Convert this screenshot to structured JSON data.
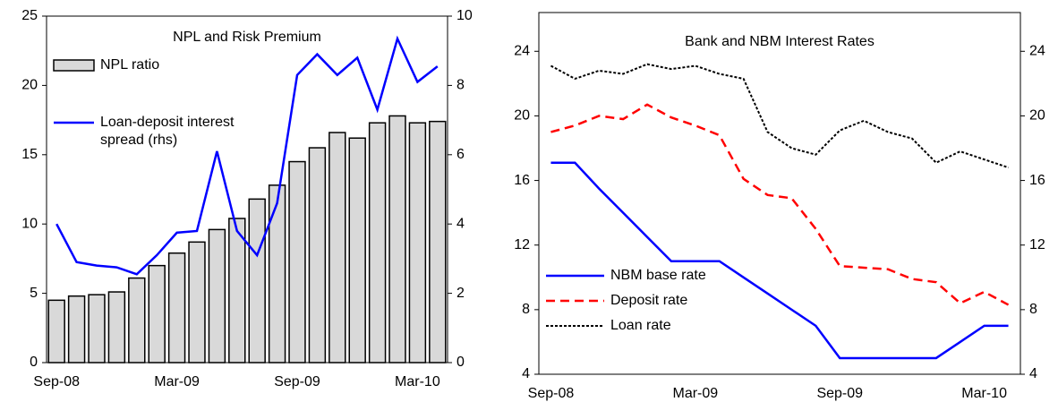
{
  "chart_data": [
    {
      "type": "bar",
      "title": "NPL and Risk Premium",
      "categories": [
        "Sep-08",
        null,
        null,
        null,
        null,
        null,
        "Mar-09",
        null,
        null,
        null,
        null,
        null,
        "Sep-09",
        null,
        null,
        null,
        null,
        null,
        "Mar-10",
        null
      ],
      "series": [
        {
          "name": "NPL ratio",
          "type": "bar",
          "color": "#d9d9d9",
          "values": [
            4.5,
            4.8,
            4.9,
            5.1,
            6.1,
            7.0,
            7.9,
            8.7,
            9.6,
            10.4,
            11.8,
            12.8,
            14.5,
            15.5,
            16.6,
            16.2,
            17.3,
            17.8,
            17.3,
            17.4
          ]
        },
        {
          "name": "Loan-deposit interest spread (rhs)",
          "type": "line",
          "axis": "y2",
          "color": "#0000ff",
          "values": [
            4.0,
            2.9,
            2.8,
            2.75,
            2.55,
            3.1,
            3.75,
            3.8,
            6.1,
            3.8,
            3.1,
            4.6,
            8.3,
            8.9,
            8.3,
            8.8,
            7.3,
            9.35,
            8.1,
            8.55
          ]
        }
      ],
      "ylim": [
        0,
        25
      ],
      "yticks": [
        0,
        5,
        10,
        15,
        20,
        25
      ],
      "y2lim": [
        0,
        10
      ],
      "y2ticks": [
        0,
        2,
        4,
        6,
        8,
        10
      ],
      "legend": "upper left"
    },
    {
      "type": "line",
      "title": "Bank and NBM Interest Rates",
      "categories": [
        "Sep-08",
        null,
        null,
        null,
        null,
        null,
        "Mar-09",
        null,
        null,
        null,
        null,
        null,
        "Sep-09",
        null,
        null,
        null,
        null,
        null,
        "Mar-10",
        null
      ],
      "series": [
        {
          "name": "NBM base rate",
          "color": "#0000ff",
          "dash": "solid",
          "values": [
            17.1,
            17.1,
            15.5,
            14.0,
            12.5,
            11.0,
            11.0,
            11.0,
            10.0,
            9.0,
            8.0,
            7.0,
            5.0,
            5.0,
            5.0,
            5.0,
            5.0,
            6.0,
            7.0,
            7.0
          ]
        },
        {
          "name": "Deposit rate",
          "color": "#ff0000",
          "dash": "dashed",
          "values": [
            19.0,
            19.4,
            20.0,
            19.8,
            20.7,
            19.9,
            19.4,
            18.8,
            16.1,
            15.1,
            14.9,
            13.0,
            10.7,
            10.6,
            10.5,
            9.9,
            9.7,
            8.4,
            9.1,
            8.3
          ]
        },
        {
          "name": "Loan rate",
          "color": "#000000",
          "dash": "dotted",
          "values": [
            23.1,
            22.3,
            22.8,
            22.6,
            23.2,
            22.9,
            23.1,
            22.6,
            22.3,
            19.0,
            18.0,
            17.6,
            19.1,
            19.7,
            19.0,
            18.6,
            17.1,
            17.8,
            17.3,
            16.8
          ]
        }
      ],
      "ylim": [
        4,
        26.4
      ],
      "yticks": [
        4,
        8,
        12,
        16,
        20,
        24
      ],
      "y2lim": [
        4,
        26.4
      ],
      "y2ticks": [
        4,
        8,
        12,
        16,
        20,
        24
      ],
      "legend": "lower left"
    }
  ]
}
